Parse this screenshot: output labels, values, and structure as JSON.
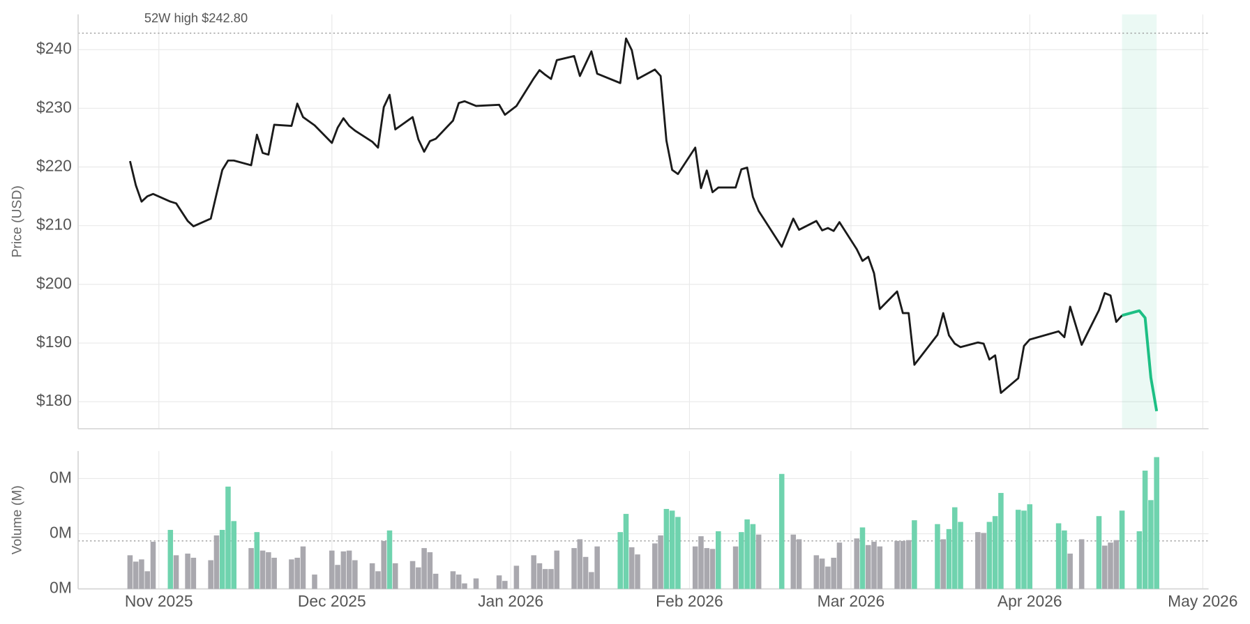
{
  "chart_data": [
    {
      "type": "line",
      "y_label": "Price (USD)",
      "grid": true,
      "xlim": [
        "2025-10-18",
        "2026-05-02"
      ],
      "ylim": [
        175.4,
        246
      ],
      "yticks": [
        {
          "value": 180,
          "label": "$180"
        },
        {
          "value": 190,
          "label": "$190"
        },
        {
          "value": 200,
          "label": "$200"
        },
        {
          "value": 210,
          "label": "$210"
        },
        {
          "value": 220,
          "label": "$220"
        },
        {
          "value": 230,
          "label": "$230"
        },
        {
          "value": 240,
          "label": "$240"
        }
      ],
      "reference_line": {
        "value": 242.8,
        "label": "52W high $242.80"
      },
      "highlight": {
        "x": [
          "2026-04-17",
          "2026-04-23"
        ],
        "color": "#1dbf84"
      },
      "x": [
        "2025-10-27",
        "2025-10-28",
        "2025-10-29",
        "2025-10-30",
        "2025-10-31",
        "2025-11-03",
        "2025-11-04",
        "2025-11-06",
        "2025-11-07",
        "2025-11-10",
        "2025-11-11",
        "2025-11-12",
        "2025-11-13",
        "2025-11-14",
        "2025-11-17",
        "2025-11-18",
        "2025-11-19",
        "2025-11-20",
        "2025-11-21",
        "2025-11-24",
        "2025-11-25",
        "2025-11-26",
        "2025-11-28",
        "2025-12-01",
        "2025-12-02",
        "2025-12-03",
        "2025-12-04",
        "2025-12-05",
        "2025-12-08",
        "2025-12-09",
        "2025-12-10",
        "2025-12-11",
        "2025-12-12",
        "2025-12-15",
        "2025-12-16",
        "2025-12-17",
        "2025-12-18",
        "2025-12-19",
        "2025-12-22",
        "2025-12-23",
        "2025-12-24",
        "2025-12-26",
        "2025-12-30",
        "2025-12-31",
        "2026-01-02",
        "2026-01-05",
        "2026-01-06",
        "2026-01-07",
        "2026-01-08",
        "2026-01-09",
        "2026-01-12",
        "2026-01-13",
        "2026-01-14",
        "2026-01-15",
        "2026-01-16",
        "2026-01-20",
        "2026-01-21",
        "2026-01-22",
        "2026-01-23",
        "2026-01-26",
        "2026-01-27",
        "2026-01-28",
        "2026-01-29",
        "2026-01-30",
        "2026-02-02",
        "2026-02-03",
        "2026-02-04",
        "2026-02-05",
        "2026-02-06",
        "2026-02-09",
        "2026-02-10",
        "2026-02-11",
        "2026-02-12",
        "2026-02-13",
        "2026-02-17",
        "2026-02-19",
        "2026-02-20",
        "2026-02-23",
        "2026-02-24",
        "2026-02-25",
        "2026-02-26",
        "2026-02-27",
        "2026-03-02",
        "2026-03-03",
        "2026-03-04",
        "2026-03-05",
        "2026-03-06",
        "2026-03-09",
        "2026-03-10",
        "2026-03-11",
        "2026-03-12",
        "2026-03-16",
        "2026-03-17",
        "2026-03-18",
        "2026-03-19",
        "2026-03-20",
        "2026-03-23",
        "2026-03-24",
        "2026-03-25",
        "2026-03-26",
        "2026-03-27",
        "2026-03-30",
        "2026-03-31",
        "2026-04-01",
        "2026-04-06",
        "2026-04-07",
        "2026-04-08",
        "2026-04-10",
        "2026-04-13",
        "2026-04-14",
        "2026-04-15",
        "2026-04-16",
        "2026-04-17",
        "2026-04-20",
        "2026-04-21",
        "2026-04-22",
        "2026-04-23"
      ],
      "series": [
        {
          "color": "#1a1a1a",
          "values": [
            221.0,
            216.9,
            214.1,
            215.0,
            215.4,
            214.1,
            213.8,
            210.8,
            209.9,
            211.2,
            215.4,
            219.5,
            221.1,
            221.1,
            220.3,
            225.5,
            222.4,
            222.1,
            227.2,
            227.0,
            230.8,
            228.5,
            227.1,
            224.1,
            226.7,
            228.3,
            227.0,
            226.2,
            224.3,
            223.3,
            230.2,
            232.3,
            226.4,
            228.5,
            224.7,
            222.6,
            224.4,
            224.8,
            227.9,
            230.9,
            231.2,
            230.4,
            230.6,
            228.9,
            230.4,
            235.1,
            236.5,
            235.7,
            235.0,
            238.2,
            238.9,
            235.5,
            237.6,
            239.7,
            235.9,
            234.3,
            241.9,
            239.9,
            235.0,
            236.6,
            235.5,
            224.5,
            219.5,
            218.8,
            223.3,
            216.4,
            219.4,
            215.7,
            216.5,
            216.5,
            219.6,
            219.9,
            214.9,
            212.5,
            206.4,
            211.2,
            209.3,
            210.8,
            209.2,
            209.6,
            209.1,
            210.6,
            206.0,
            204.0,
            204.7,
            201.9,
            195.8,
            198.8,
            195.1,
            195.1,
            186.3,
            191.4,
            195.1,
            191.3,
            189.9,
            189.3,
            190.1,
            189.9,
            187.2,
            187.9,
            181.5,
            184.0,
            189.5,
            190.6,
            192.0,
            191.0,
            196.2,
            189.7,
            195.6,
            198.5,
            198.1,
            193.6,
            194.7,
            null,
            null,
            null,
            null
          ]
        },
        {
          "color": "#1dbf84",
          "values": [
            null,
            null,
            null,
            null,
            null,
            null,
            null,
            null,
            null,
            null,
            null,
            null,
            null,
            null,
            null,
            null,
            null,
            null,
            null,
            null,
            null,
            null,
            null,
            null,
            null,
            null,
            null,
            null,
            null,
            null,
            null,
            null,
            null,
            null,
            null,
            null,
            null,
            null,
            null,
            null,
            null,
            null,
            null,
            null,
            null,
            null,
            null,
            null,
            null,
            null,
            null,
            null,
            null,
            null,
            null,
            null,
            null,
            null,
            null,
            null,
            null,
            null,
            null,
            null,
            null,
            null,
            null,
            null,
            null,
            null,
            null,
            null,
            null,
            null,
            null,
            null,
            null,
            null,
            null,
            null,
            null,
            null,
            null,
            null,
            null,
            null,
            null,
            null,
            null,
            null,
            null,
            null,
            null,
            null,
            null,
            null,
            null,
            null,
            null,
            null,
            null,
            null,
            null,
            null,
            null,
            null,
            null,
            null,
            null,
            null,
            null,
            null,
            194.7,
            195.5,
            194.3,
            184.1,
            178.4
          ]
        }
      ]
    },
    {
      "type": "bar",
      "y_label": "Volume (M)",
      "grid": true,
      "xlim": [
        "2025-10-18",
        "2026-05-02"
      ],
      "ylim": [
        0,
        0.5
      ],
      "yticks": [
        {
          "value": 0,
          "label": "0M"
        },
        {
          "value": 0.2,
          "label": "0M"
        },
        {
          "value": 0.4,
          "label": "0M"
        }
      ],
      "xticks": [
        {
          "value": "2025-11-01",
          "label": "Nov 2025"
        },
        {
          "value": "2025-12-01",
          "label": "Dec 2025"
        },
        {
          "value": "2026-01-01",
          "label": "Jan 2026"
        },
        {
          "value": "2026-02-01",
          "label": "Feb 2026"
        },
        {
          "value": "2026-03-01",
          "label": "Mar 2026"
        },
        {
          "value": "2026-04-01",
          "label": "Apr 2026"
        },
        {
          "value": "2026-05-01",
          "label": "May 2026"
        }
      ],
      "reference_line": {
        "value": 0.174
      },
      "x": [
        "2025-10-27",
        "2025-10-28",
        "2025-10-29",
        "2025-10-30",
        "2025-10-31",
        "2025-11-03",
        "2025-11-04",
        "2025-11-06",
        "2025-11-07",
        "2025-11-10",
        "2025-11-11",
        "2025-11-12",
        "2025-11-13",
        "2025-11-14",
        "2025-11-17",
        "2025-11-18",
        "2025-11-19",
        "2025-11-20",
        "2025-11-21",
        "2025-11-24",
        "2025-11-25",
        "2025-11-26",
        "2025-11-28",
        "2025-12-01",
        "2025-12-02",
        "2025-12-03",
        "2025-12-04",
        "2025-12-05",
        "2025-12-08",
        "2025-12-09",
        "2025-12-10",
        "2025-12-11",
        "2025-12-12",
        "2025-12-15",
        "2025-12-16",
        "2025-12-17",
        "2025-12-18",
        "2025-12-19",
        "2025-12-22",
        "2025-12-23",
        "2025-12-24",
        "2025-12-26",
        "2025-12-30",
        "2025-12-31",
        "2026-01-02",
        "2026-01-05",
        "2026-01-06",
        "2026-01-07",
        "2026-01-08",
        "2026-01-09",
        "2026-01-12",
        "2026-01-13",
        "2026-01-14",
        "2026-01-15",
        "2026-01-16",
        "2026-01-20",
        "2026-01-21",
        "2026-01-22",
        "2026-01-23",
        "2026-01-26",
        "2026-01-27",
        "2026-01-28",
        "2026-01-29",
        "2026-01-30",
        "2026-02-02",
        "2026-02-03",
        "2026-02-04",
        "2026-02-05",
        "2026-02-06",
        "2026-02-09",
        "2026-02-10",
        "2026-02-11",
        "2026-02-12",
        "2026-02-13",
        "2026-02-17",
        "2026-02-19",
        "2026-02-20",
        "2026-02-23",
        "2026-02-24",
        "2026-02-25",
        "2026-02-26",
        "2026-02-27",
        "2026-03-02",
        "2026-03-03",
        "2026-03-04",
        "2026-03-05",
        "2026-03-06",
        "2026-03-09",
        "2026-03-10",
        "2026-03-11",
        "2026-03-12",
        "2026-03-16",
        "2026-03-17",
        "2026-03-18",
        "2026-03-19",
        "2026-03-20",
        "2026-03-23",
        "2026-03-24",
        "2026-03-25",
        "2026-03-26",
        "2026-03-27",
        "2026-03-30",
        "2026-03-31",
        "2026-04-01",
        "2026-04-06",
        "2026-04-07",
        "2026-04-08",
        "2026-04-10",
        "2026-04-13",
        "2026-04-14",
        "2026-04-15",
        "2026-04-16",
        "2026-04-17",
        "2026-04-20",
        "2026-04-21",
        "2026-04-22",
        "2026-04-23"
      ],
      "values": [
        0.122,
        0.099,
        0.107,
        0.064,
        0.171,
        0.214,
        0.122,
        0.128,
        0.113,
        0.104,
        0.194,
        0.214,
        0.371,
        0.246,
        0.148,
        0.206,
        0.139,
        0.133,
        0.113,
        0.107,
        0.113,
        0.154,
        0.052,
        0.139,
        0.087,
        0.136,
        0.139,
        0.104,
        0.093,
        0.064,
        0.174,
        0.212,
        0.093,
        0.101,
        0.078,
        0.148,
        0.133,
        0.055,
        0.064,
        0.052,
        0.02,
        0.038,
        0.049,
        0.029,
        0.084,
        0.122,
        0.093,
        0.072,
        0.072,
        0.139,
        0.148,
        0.18,
        0.116,
        0.061,
        0.154,
        0.206,
        0.272,
        0.151,
        0.125,
        0.165,
        0.194,
        0.29,
        0.284,
        0.261,
        0.154,
        0.191,
        0.148,
        0.145,
        0.209,
        0.154,
        0.206,
        0.252,
        0.235,
        0.197,
        0.417,
        0.197,
        0.18,
        0.122,
        0.11,
        0.081,
        0.113,
        0.168,
        0.183,
        0.223,
        0.159,
        0.171,
        0.154,
        0.174,
        0.174,
        0.177,
        0.249,
        0.235,
        0.18,
        0.217,
        0.296,
        0.243,
        0.206,
        0.203,
        0.243,
        0.264,
        0.348,
        0.287,
        0.284,
        0.307,
        0.238,
        0.212,
        0.128,
        0.18,
        0.264,
        0.157,
        0.168,
        0.177,
        0.284,
        0.209,
        0.429,
        0.322,
        0.478
      ],
      "colors": [
        "#a9a8ae",
        "#a9a8ae",
        "#a9a8ae",
        "#a9a8ae",
        "#a9a8ae",
        "#6fd3ae",
        "#a9a8ae",
        "#a9a8ae",
        "#a9a8ae",
        "#a9a8ae",
        "#a9a8ae",
        "#6fd3ae",
        "#6fd3ae",
        "#6fd3ae",
        "#a9a8ae",
        "#6fd3ae",
        "#a9a8ae",
        "#a9a8ae",
        "#a9a8ae",
        "#a9a8ae",
        "#a9a8ae",
        "#a9a8ae",
        "#a9a8ae",
        "#a9a8ae",
        "#a9a8ae",
        "#a9a8ae",
        "#a9a8ae",
        "#a9a8ae",
        "#a9a8ae",
        "#a9a8ae",
        "#a9a8ae",
        "#6fd3ae",
        "#a9a8ae",
        "#a9a8ae",
        "#a9a8ae",
        "#a9a8ae",
        "#a9a8ae",
        "#a9a8ae",
        "#a9a8ae",
        "#a9a8ae",
        "#a9a8ae",
        "#a9a8ae",
        "#a9a8ae",
        "#a9a8ae",
        "#a9a8ae",
        "#a9a8ae",
        "#a9a8ae",
        "#a9a8ae",
        "#a9a8ae",
        "#a9a8ae",
        "#a9a8ae",
        "#a9a8ae",
        "#a9a8ae",
        "#a9a8ae",
        "#a9a8ae",
        "#6fd3ae",
        "#6fd3ae",
        "#a9a8ae",
        "#a9a8ae",
        "#a9a8ae",
        "#a9a8ae",
        "#6fd3ae",
        "#6fd3ae",
        "#6fd3ae",
        "#a9a8ae",
        "#a9a8ae",
        "#a9a8ae",
        "#a9a8ae",
        "#6fd3ae",
        "#a9a8ae",
        "#6fd3ae",
        "#6fd3ae",
        "#6fd3ae",
        "#a9a8ae",
        "#6fd3ae",
        "#a9a8ae",
        "#a9a8ae",
        "#a9a8ae",
        "#a9a8ae",
        "#a9a8ae",
        "#a9a8ae",
        "#a9a8ae",
        "#a9a8ae",
        "#6fd3ae",
        "#a9a8ae",
        "#a9a8ae",
        "#a9a8ae",
        "#a9a8ae",
        "#a9a8ae",
        "#a9a8ae",
        "#6fd3ae",
        "#6fd3ae",
        "#a9a8ae",
        "#6fd3ae",
        "#6fd3ae",
        "#6fd3ae",
        "#a9a8ae",
        "#a9a8ae",
        "#6fd3ae",
        "#6fd3ae",
        "#6fd3ae",
        "#6fd3ae",
        "#6fd3ae",
        "#6fd3ae",
        "#6fd3ae",
        "#6fd3ae",
        "#a9a8ae",
        "#a9a8ae",
        "#6fd3ae",
        "#a9a8ae",
        "#a9a8ae",
        "#a9a8ae",
        "#6fd3ae",
        "#6fd3ae",
        "#6fd3ae",
        "#6fd3ae",
        "#6fd3ae"
      ]
    }
  ]
}
